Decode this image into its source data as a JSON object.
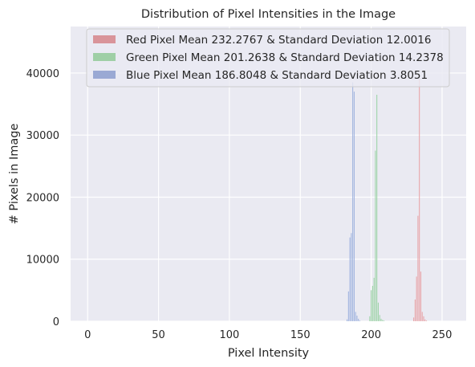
{
  "chart_data": {
    "type": "bar",
    "title": "Distribution of Pixel Intensities in the Image",
    "xlabel": "Pixel Intensity",
    "ylabel": "# Pixels in Image",
    "xlim": [
      -12,
      267
    ],
    "ylim": [
      0,
      47500
    ],
    "xticks": [
      0,
      50,
      100,
      150,
      200,
      250
    ],
    "yticks": [
      0,
      10000,
      20000,
      30000,
      40000
    ],
    "grid": true,
    "legend_position": "top",
    "colors": {
      "background": "#eaeaf2",
      "grid": "#ffffff",
      "red": "#dd8452",
      "red_fill": "#d9868c",
      "green_fill": "#8fcf9c",
      "blue_fill": "#8ea5d7"
    },
    "series": [
      {
        "name": "Red Pixel Mean 232.2767 & Standard Deviation 12.0016",
        "color": "#e8a2a6",
        "legend_color": "#d9949a",
        "x": [
          230,
          231,
          232,
          233,
          234,
          235,
          236,
          237,
          238,
          239
        ],
        "values": [
          600,
          3500,
          7200,
          17000,
          39000,
          8000,
          1500,
          800,
          300,
          100
        ]
      },
      {
        "name": "Green Pixel Mean 201.2638 & Standard Deviation 14.2378",
        "color": "#9cd3a6",
        "legend_color": "#9fcfa6",
        "x": [
          199,
          200,
          201,
          202,
          203,
          204,
          205,
          206,
          207,
          208,
          209
        ],
        "values": [
          800,
          5000,
          5700,
          7000,
          27500,
          36500,
          3000,
          1000,
          400,
          200,
          100
        ]
      },
      {
        "name": "Blue Pixel Mean 186.8048 & Standard Deviation 3.8051",
        "color": "#9fb3df",
        "legend_color": "#9aa9d4",
        "x": [
          183,
          184,
          185,
          186,
          187,
          188,
          189,
          190,
          191,
          192
        ],
        "values": [
          300,
          4800,
          13500,
          14200,
          38500,
          37000,
          1500,
          900,
          400,
          100
        ]
      }
    ]
  }
}
